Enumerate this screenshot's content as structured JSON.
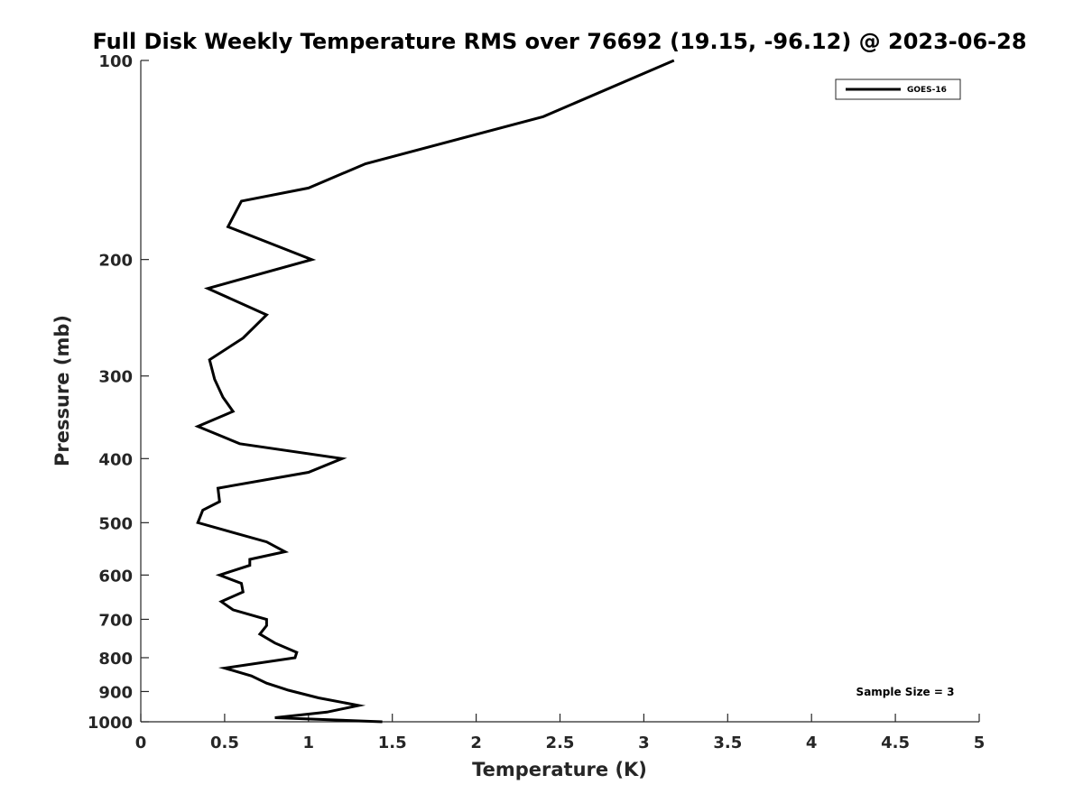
{
  "chart_data": {
    "type": "line",
    "title": "Full Disk Weekly Temperature RMS over 76692 (19.15, -96.12) @ 2023-06-28",
    "xlabel": "Temperature (K)",
    "ylabel": "Pressure (mb)",
    "xlim": [
      0,
      5
    ],
    "ylim": [
      100,
      1000
    ],
    "y_scale": "log",
    "y_reversed": true,
    "x_ticks": [
      "0",
      "0.5",
      "1",
      "1.5",
      "2",
      "2.5",
      "3",
      "3.5",
      "4",
      "4.5",
      "5"
    ],
    "y_ticks": [
      "100",
      "200",
      "300",
      "400",
      "500",
      "600",
      "700",
      "800",
      "900",
      "1000"
    ],
    "grid": false,
    "legend_position": "top-right",
    "color": "#000000",
    "annotation": "Sample Size = 3",
    "series": [
      {
        "name": "GOES-16",
        "points": [
          [
            3.18,
            100
          ],
          [
            2.4,
            121.6
          ],
          [
            1.34,
            143.3
          ],
          [
            1.0,
            155.9
          ],
          [
            0.6,
            163.2
          ],
          [
            0.52,
            178.4
          ],
          [
            1.02,
            200
          ],
          [
            0.4,
            221.2
          ],
          [
            0.75,
            242.5
          ],
          [
            0.61,
            262.9
          ],
          [
            0.41,
            283.6
          ],
          [
            0.44,
            303.5
          ],
          [
            0.49,
            323.1
          ],
          [
            0.55,
            339.4
          ],
          [
            0.34,
            357.6
          ],
          [
            0.59,
            379.8
          ],
          [
            1.2,
            400
          ],
          [
            1.0,
            419.6
          ],
          [
            0.46,
            443.4
          ],
          [
            0.47,
            464.6
          ],
          [
            0.37,
            478.5
          ],
          [
            0.34,
            500
          ],
          [
            0.75,
            534.6
          ],
          [
            0.86,
            553.1
          ],
          [
            0.65,
            568.1
          ],
          [
            0.65,
            580.1
          ],
          [
            0.47,
            600
          ],
          [
            0.6,
            617.7
          ],
          [
            0.61,
            636.3
          ],
          [
            0.48,
            658.1
          ],
          [
            0.55,
            677.2
          ],
          [
            0.75,
            700
          ],
          [
            0.75,
            715.5
          ],
          [
            0.71,
            736.9
          ],
          [
            0.8,
            760.2
          ],
          [
            0.93,
            785.4
          ],
          [
            0.92,
            800
          ],
          [
            0.5,
            829.5
          ],
          [
            0.66,
            852.4
          ],
          [
            0.75,
            874.3
          ],
          [
            0.88,
            895.8
          ],
          [
            1.06,
            920.1
          ],
          [
            1.3,
            944.8
          ],
          [
            1.11,
            967.0
          ],
          [
            0.8,
            986.1
          ],
          [
            1.44,
            1000
          ]
        ]
      }
    ]
  }
}
